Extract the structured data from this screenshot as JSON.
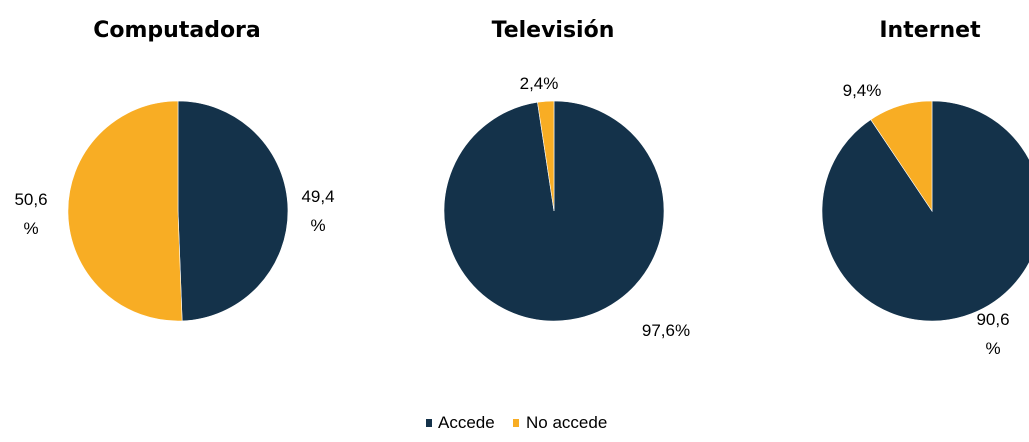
{
  "colors": {
    "accede": "#14324a",
    "no_accede": "#f8ad24"
  },
  "legend": [
    {
      "label": "Accede",
      "color": "#14324a"
    },
    {
      "label": "No accede",
      "color": "#f8ad24"
    }
  ],
  "chart_data": [
    {
      "type": "pie",
      "title": "Computadora",
      "slices": [
        {
          "category": "Accede",
          "value": 49.4,
          "label_lines": [
            "49,4",
            "%"
          ]
        },
        {
          "category": "No accede",
          "value": 50.6,
          "label_lines": [
            "50,6",
            "%"
          ]
        }
      ]
    },
    {
      "type": "pie",
      "title": "Televisión",
      "slices": [
        {
          "category": "Accede",
          "value": 97.6,
          "label_lines": [
            "97,6%"
          ]
        },
        {
          "category": "No accede",
          "value": 2.4,
          "label_lines": [
            "2,4%"
          ]
        }
      ]
    },
    {
      "type": "pie",
      "title": "Internet",
      "slices": [
        {
          "category": "Accede",
          "value": 90.6,
          "label_lines": [
            "90,6",
            "%"
          ]
        },
        {
          "category": "No accede",
          "value": 9.4,
          "label_lines": [
            "9,4%"
          ]
        }
      ]
    }
  ]
}
